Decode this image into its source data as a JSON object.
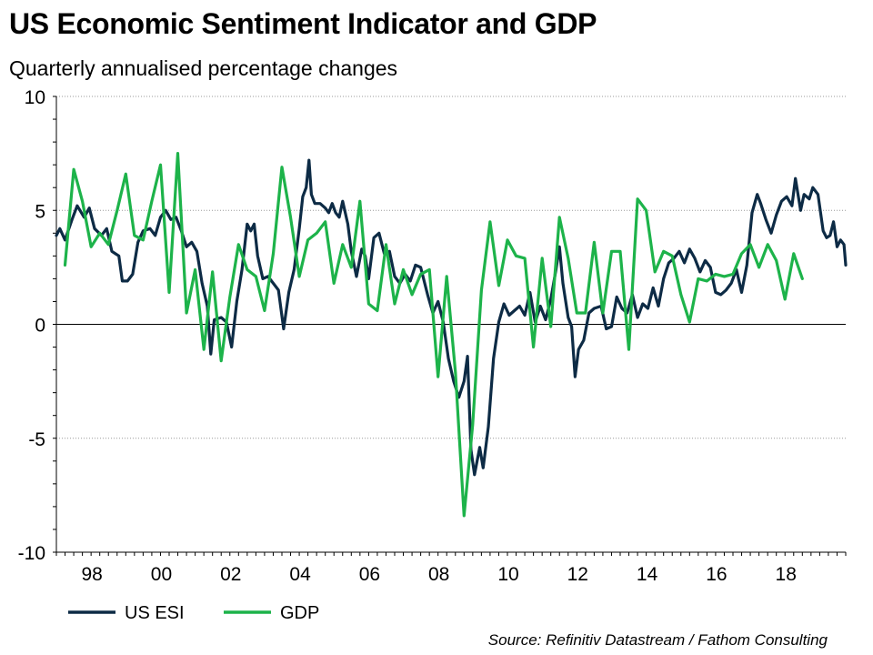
{
  "title": "US Economic Sentiment Indicator and GDP",
  "subtitle": "Quarterly annualised percentage changes",
  "source": "Source: Refinitiv Datastream / Fathom Consulting",
  "colors": {
    "esi": "#0d2b45",
    "gdp": "#1db34a",
    "grid": "#9a9a9a",
    "axis": "#000000"
  },
  "chart_data": {
    "type": "line",
    "title": "US Economic Sentiment Indicator and GDP",
    "subtitle": "Quarterly annualised percentage changes",
    "xlabel": "",
    "ylabel": "",
    "xlim": [
      1997,
      2019.75
    ],
    "ylim": [
      -10,
      10
    ],
    "yticks": [
      10,
      5,
      0,
      -5,
      -10
    ],
    "xticks": [
      {
        "value": 1998,
        "label": "98"
      },
      {
        "value": 2000,
        "label": "00"
      },
      {
        "value": 2002,
        "label": "02"
      },
      {
        "value": 2004,
        "label": "04"
      },
      {
        "value": 2006,
        "label": "06"
      },
      {
        "value": 2008,
        "label": "08"
      },
      {
        "value": 2010,
        "label": "10"
      },
      {
        "value": 2012,
        "label": "12"
      },
      {
        "value": 2014,
        "label": "14"
      },
      {
        "value": 2016,
        "label": "16"
      },
      {
        "value": 2018,
        "label": "18"
      }
    ],
    "grid": "horizontal dotted",
    "legend": "bottom-left",
    "series": [
      {
        "name": "US ESI",
        "color": "#0d2b45",
        "points": [
          [
            1997.0,
            3.9
          ],
          [
            1997.1,
            4.2
          ],
          [
            1997.25,
            3.7
          ],
          [
            1997.45,
            4.6
          ],
          [
            1997.6,
            5.2
          ],
          [
            1997.8,
            4.7
          ],
          [
            1997.95,
            5.1
          ],
          [
            1998.1,
            4.2
          ],
          [
            1998.3,
            3.9
          ],
          [
            1998.45,
            4.2
          ],
          [
            1998.6,
            3.2
          ],
          [
            1998.8,
            3.0
          ],
          [
            1998.9,
            1.9
          ],
          [
            1999.05,
            1.9
          ],
          [
            1999.2,
            2.2
          ],
          [
            1999.35,
            3.6
          ],
          [
            1999.5,
            4.1
          ],
          [
            1999.7,
            4.2
          ],
          [
            1999.85,
            3.9
          ],
          [
            2000.0,
            4.7
          ],
          [
            2000.15,
            5.0
          ],
          [
            2000.3,
            4.6
          ],
          [
            2000.45,
            4.7
          ],
          [
            2000.6,
            4.1
          ],
          [
            2000.75,
            3.4
          ],
          [
            2000.9,
            3.6
          ],
          [
            2001.05,
            3.2
          ],
          [
            2001.2,
            1.8
          ],
          [
            2001.35,
            0.8
          ],
          [
            2001.45,
            -1.3
          ],
          [
            2001.55,
            0.2
          ],
          [
            2001.75,
            0.3
          ],
          [
            2001.9,
            0.1
          ],
          [
            2002.05,
            -1.0
          ],
          [
            2002.2,
            1.0
          ],
          [
            2002.35,
            2.4
          ],
          [
            2002.5,
            4.4
          ],
          [
            2002.6,
            4.1
          ],
          [
            2002.7,
            4.4
          ],
          [
            2002.8,
            3.0
          ],
          [
            2002.95,
            2.0
          ],
          [
            2003.1,
            2.1
          ],
          [
            2003.25,
            1.8
          ],
          [
            2003.4,
            1.5
          ],
          [
            2003.55,
            -0.2
          ],
          [
            2003.7,
            1.4
          ],
          [
            2003.85,
            2.4
          ],
          [
            2004.0,
            4.2
          ],
          [
            2004.1,
            5.6
          ],
          [
            2004.2,
            6.0
          ],
          [
            2004.28,
            7.2
          ],
          [
            2004.35,
            5.7
          ],
          [
            2004.45,
            5.3
          ],
          [
            2004.6,
            5.3
          ],
          [
            2004.75,
            5.1
          ],
          [
            2004.85,
            4.9
          ],
          [
            2004.95,
            5.3
          ],
          [
            2005.05,
            4.9
          ],
          [
            2005.15,
            4.7
          ],
          [
            2005.25,
            5.4
          ],
          [
            2005.4,
            4.4
          ],
          [
            2005.5,
            3.2
          ],
          [
            2005.65,
            2.1
          ],
          [
            2005.8,
            3.3
          ],
          [
            2005.9,
            3.0
          ],
          [
            2006.0,
            2.0
          ],
          [
            2006.15,
            3.8
          ],
          [
            2006.3,
            4.0
          ],
          [
            2006.45,
            3.1
          ],
          [
            2006.6,
            3.2
          ],
          [
            2006.75,
            2.1
          ],
          [
            2006.9,
            1.8
          ],
          [
            2007.05,
            2.2
          ],
          [
            2007.2,
            1.9
          ],
          [
            2007.35,
            2.6
          ],
          [
            2007.5,
            2.5
          ],
          [
            2007.7,
            1.3
          ],
          [
            2007.85,
            0.5
          ],
          [
            2008.0,
            1.0
          ],
          [
            2008.15,
            0.1
          ],
          [
            2008.3,
            -1.5
          ],
          [
            2008.45,
            -2.5
          ],
          [
            2008.6,
            -3.2
          ],
          [
            2008.75,
            -2.5
          ],
          [
            2008.85,
            -1.4
          ],
          [
            2008.95,
            -5.5
          ],
          [
            2009.05,
            -6.6
          ],
          [
            2009.2,
            -5.4
          ],
          [
            2009.3,
            -6.3
          ],
          [
            2009.45,
            -4.5
          ],
          [
            2009.6,
            -1.5
          ],
          [
            2009.75,
            0.1
          ],
          [
            2009.9,
            0.9
          ],
          [
            2010.05,
            0.4
          ],
          [
            2010.2,
            0.6
          ],
          [
            2010.35,
            0.8
          ],
          [
            2010.5,
            0.4
          ],
          [
            2010.65,
            1.4
          ],
          [
            2010.8,
            0.1
          ],
          [
            2010.95,
            0.8
          ],
          [
            2011.1,
            0.2
          ],
          [
            2011.25,
            1.1
          ],
          [
            2011.4,
            2.4
          ],
          [
            2011.5,
            3.4
          ],
          [
            2011.6,
            1.8
          ],
          [
            2011.75,
            0.3
          ],
          [
            2011.85,
            -0.1
          ],
          [
            2011.95,
            -2.3
          ],
          [
            2012.05,
            -1.1
          ],
          [
            2012.2,
            -0.7
          ],
          [
            2012.35,
            0.5
          ],
          [
            2012.5,
            0.7
          ],
          [
            2012.7,
            0.8
          ],
          [
            2012.85,
            -0.2
          ],
          [
            2013.0,
            -0.1
          ],
          [
            2013.15,
            1.2
          ],
          [
            2013.3,
            0.7
          ],
          [
            2013.45,
            0.5
          ],
          [
            2013.6,
            1.3
          ],
          [
            2013.75,
            0.3
          ],
          [
            2013.9,
            0.9
          ],
          [
            2014.05,
            0.7
          ],
          [
            2014.2,
            1.6
          ],
          [
            2014.35,
            0.8
          ],
          [
            2014.5,
            2.0
          ],
          [
            2014.65,
            2.7
          ],
          [
            2014.8,
            2.9
          ],
          [
            2014.95,
            3.2
          ],
          [
            2015.1,
            2.7
          ],
          [
            2015.25,
            3.3
          ],
          [
            2015.4,
            2.9
          ],
          [
            2015.55,
            2.3
          ],
          [
            2015.7,
            2.8
          ],
          [
            2015.85,
            2.5
          ],
          [
            2016.0,
            1.4
          ],
          [
            2016.15,
            1.3
          ],
          [
            2016.3,
            1.5
          ],
          [
            2016.45,
            1.8
          ],
          [
            2016.6,
            2.4
          ],
          [
            2016.75,
            1.4
          ],
          [
            2016.9,
            2.6
          ],
          [
            2017.05,
            4.9
          ],
          [
            2017.2,
            5.7
          ],
          [
            2017.3,
            5.3
          ],
          [
            2017.45,
            4.6
          ],
          [
            2017.6,
            4.0
          ],
          [
            2017.75,
            4.8
          ],
          [
            2017.9,
            5.4
          ],
          [
            2018.05,
            5.6
          ],
          [
            2018.2,
            5.2
          ],
          [
            2018.3,
            6.4
          ],
          [
            2018.45,
            5.0
          ],
          [
            2018.55,
            5.7
          ],
          [
            2018.7,
            5.5
          ],
          [
            2018.8,
            6.0
          ],
          [
            2018.95,
            5.7
          ],
          [
            2019.1,
            4.1
          ],
          [
            2019.2,
            3.8
          ],
          [
            2019.3,
            3.9
          ],
          [
            2019.4,
            4.5
          ],
          [
            2019.5,
            3.4
          ],
          [
            2019.6,
            3.7
          ],
          [
            2019.7,
            3.5
          ],
          [
            2019.75,
            2.6
          ]
        ]
      },
      {
        "name": "GDP",
        "color": "#1db34a",
        "points": [
          [
            1997.25,
            2.6
          ],
          [
            1997.5,
            6.8
          ],
          [
            1997.75,
            5.4
          ],
          [
            1998.0,
            3.4
          ],
          [
            1998.25,
            4.0
          ],
          [
            1998.5,
            3.5
          ],
          [
            1998.75,
            5.0
          ],
          [
            1999.0,
            6.6
          ],
          [
            1999.25,
            3.9
          ],
          [
            1999.5,
            3.7
          ],
          [
            1999.75,
            5.4
          ],
          [
            2000.0,
            7.0
          ],
          [
            2000.25,
            1.4
          ],
          [
            2000.5,
            7.5
          ],
          [
            2000.75,
            0.5
          ],
          [
            2001.0,
            2.4
          ],
          [
            2001.25,
            -1.1
          ],
          [
            2001.5,
            2.3
          ],
          [
            2001.75,
            -1.6
          ],
          [
            2002.0,
            1.2
          ],
          [
            2002.25,
            3.5
          ],
          [
            2002.5,
            2.4
          ],
          [
            2002.75,
            2.1
          ],
          [
            2003.0,
            0.6
          ],
          [
            2003.25,
            3.1
          ],
          [
            2003.5,
            6.9
          ],
          [
            2003.75,
            4.7
          ],
          [
            2004.0,
            2.1
          ],
          [
            2004.25,
            3.7
          ],
          [
            2004.5,
            4.0
          ],
          [
            2004.75,
            4.5
          ],
          [
            2005.0,
            1.8
          ],
          [
            2005.25,
            3.5
          ],
          [
            2005.5,
            2.5
          ],
          [
            2005.75,
            5.4
          ],
          [
            2006.0,
            0.9
          ],
          [
            2006.25,
            0.6
          ],
          [
            2006.5,
            3.5
          ],
          [
            2006.75,
            0.9
          ],
          [
            2007.0,
            2.4
          ],
          [
            2007.25,
            1.3
          ],
          [
            2007.5,
            2.2
          ],
          [
            2007.75,
            2.4
          ],
          [
            2008.0,
            -2.3
          ],
          [
            2008.25,
            2.1
          ],
          [
            2008.5,
            -2.1
          ],
          [
            2008.75,
            -8.4
          ],
          [
            2009.0,
            -4.4
          ],
          [
            2009.25,
            1.5
          ],
          [
            2009.5,
            4.5
          ],
          [
            2009.75,
            1.7
          ],
          [
            2010.0,
            3.7
          ],
          [
            2010.25,
            3.0
          ],
          [
            2010.5,
            2.9
          ],
          [
            2010.75,
            -1.0
          ],
          [
            2011.0,
            2.9
          ],
          [
            2011.25,
            -0.1
          ],
          [
            2011.5,
            4.7
          ],
          [
            2011.75,
            2.9
          ],
          [
            2012.0,
            0.5
          ],
          [
            2012.25,
            0.5
          ],
          [
            2012.5,
            3.6
          ],
          [
            2012.75,
            0.5
          ],
          [
            2013.0,
            3.2
          ],
          [
            2013.25,
            3.2
          ],
          [
            2013.5,
            -1.1
          ],
          [
            2013.75,
            5.5
          ],
          [
            2014.0,
            5.0
          ],
          [
            2014.25,
            2.3
          ],
          [
            2014.5,
            3.2
          ],
          [
            2014.75,
            3.0
          ],
          [
            2015.0,
            1.3
          ],
          [
            2015.25,
            0.1
          ],
          [
            2015.5,
            2.0
          ],
          [
            2015.75,
            1.9
          ],
          [
            2016.0,
            2.2
          ],
          [
            2016.25,
            2.1
          ],
          [
            2016.5,
            2.2
          ],
          [
            2016.75,
            3.1
          ],
          [
            2017.0,
            3.5
          ],
          [
            2017.25,
            2.5
          ],
          [
            2017.5,
            3.5
          ],
          [
            2017.75,
            2.8
          ],
          [
            2018.0,
            1.1
          ],
          [
            2018.25,
            3.1
          ],
          [
            2018.5,
            2.0
          ]
        ]
      }
    ]
  }
}
